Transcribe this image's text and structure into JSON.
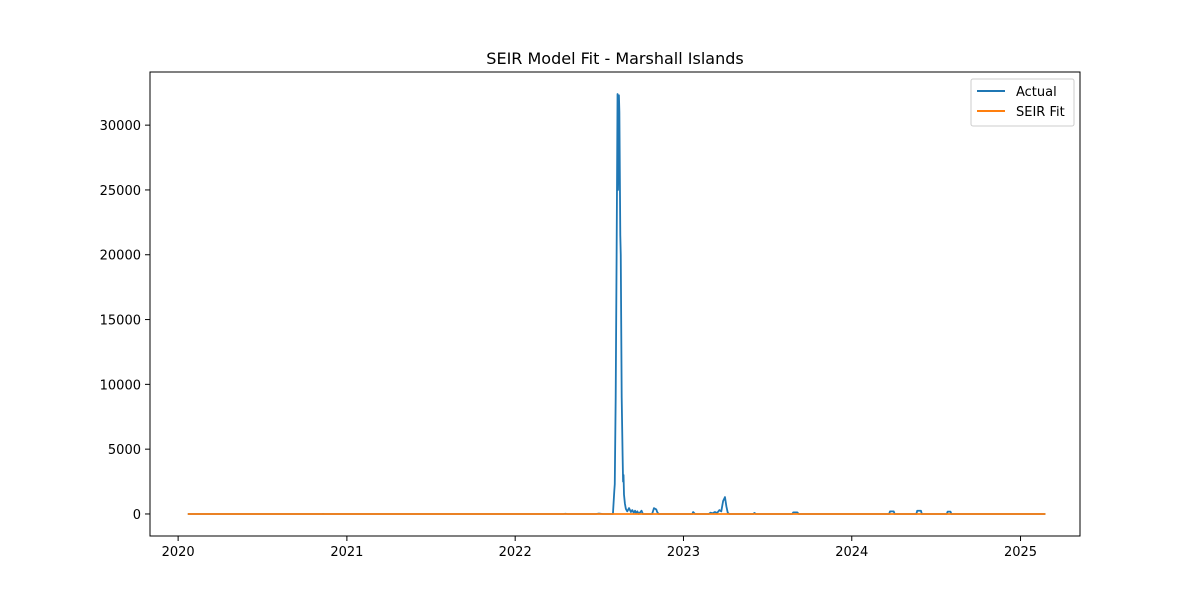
{
  "chart_data": {
    "type": "line",
    "title": "SEIR Model Fit - Marshall Islands",
    "xlabel": "",
    "ylabel": "",
    "x_axis": {
      "type": "date",
      "range": [
        "2019-11-01",
        "2025-05-10"
      ],
      "ticks": [
        {
          "date": "2020-01-01",
          "label": "2020"
        },
        {
          "date": "2021-01-01",
          "label": "2021"
        },
        {
          "date": "2022-01-01",
          "label": "2022"
        },
        {
          "date": "2023-01-01",
          "label": "2023"
        },
        {
          "date": "2024-01-01",
          "label": "2024"
        },
        {
          "date": "2025-01-01",
          "label": "2025"
        }
      ]
    },
    "y_axis": {
      "range": [
        -1700,
        34100
      ],
      "ticks": [
        {
          "value": 0,
          "label": "0"
        },
        {
          "value": 5000,
          "label": "5000"
        },
        {
          "value": 10000,
          "label": "10000"
        },
        {
          "value": 15000,
          "label": "15000"
        },
        {
          "value": 20000,
          "label": "20000"
        },
        {
          "value": 25000,
          "label": "25000"
        },
        {
          "value": 30000,
          "label": "30000"
        }
      ]
    },
    "grid": false,
    "legend": {
      "position": "top-right"
    },
    "series": [
      {
        "name": "Actual",
        "color": "#1f77b4",
        "points": [
          [
            "2020-01-22",
            0
          ],
          [
            "2020-11-08",
            0
          ],
          [
            "2020-11-10",
            5
          ],
          [
            "2020-11-14",
            0
          ],
          [
            "2022-04-15",
            0
          ],
          [
            "2022-04-20",
            20
          ],
          [
            "2022-04-25",
            0
          ],
          [
            "2022-06-25",
            0
          ],
          [
            "2022-07-01",
            30
          ],
          [
            "2022-07-10",
            0
          ],
          [
            "2022-08-01",
            0
          ],
          [
            "2022-08-04",
            1800
          ],
          [
            "2022-08-05",
            2300
          ],
          [
            "2022-08-07",
            9000
          ],
          [
            "2022-08-09",
            20000
          ],
          [
            "2022-08-11",
            32400
          ],
          [
            "2022-08-12",
            25000
          ],
          [
            "2022-08-13",
            27000
          ],
          [
            "2022-08-14",
            32300
          ],
          [
            "2022-08-15",
            31000
          ],
          [
            "2022-08-17",
            21500
          ],
          [
            "2022-08-18",
            20000
          ],
          [
            "2022-08-20",
            9000
          ],
          [
            "2022-08-22",
            4500
          ],
          [
            "2022-08-23",
            2500
          ],
          [
            "2022-08-24",
            3000
          ],
          [
            "2022-08-25",
            1500
          ],
          [
            "2022-08-27",
            800
          ],
          [
            "2022-08-29",
            400
          ],
          [
            "2022-09-01",
            200
          ],
          [
            "2022-09-05",
            450
          ],
          [
            "2022-09-09",
            150
          ],
          [
            "2022-09-12",
            300
          ],
          [
            "2022-09-15",
            100
          ],
          [
            "2022-09-18",
            250
          ],
          [
            "2022-09-20",
            50
          ],
          [
            "2022-09-23",
            200
          ],
          [
            "2022-09-26",
            0
          ],
          [
            "2022-10-02",
            250
          ],
          [
            "2022-10-05",
            0
          ],
          [
            "2022-10-25",
            0
          ],
          [
            "2022-10-29",
            450
          ],
          [
            "2022-11-03",
            350
          ],
          [
            "2022-11-05",
            150
          ],
          [
            "2022-11-08",
            0
          ],
          [
            "2023-01-20",
            0
          ],
          [
            "2023-01-22",
            150
          ],
          [
            "2023-01-26",
            0
          ],
          [
            "2023-02-25",
            0
          ],
          [
            "2023-03-01",
            100
          ],
          [
            "2023-03-05",
            50
          ],
          [
            "2023-03-10",
            150
          ],
          [
            "2023-03-15",
            80
          ],
          [
            "2023-03-20",
            300
          ],
          [
            "2023-03-24",
            200
          ],
          [
            "2023-03-28",
            1000
          ],
          [
            "2023-04-01",
            1300
          ],
          [
            "2023-04-04",
            600
          ],
          [
            "2023-04-07",
            100
          ],
          [
            "2023-04-10",
            0
          ],
          [
            "2023-06-01",
            0
          ],
          [
            "2023-06-04",
            80
          ],
          [
            "2023-06-07",
            0
          ],
          [
            "2023-08-25",
            0
          ],
          [
            "2023-08-27",
            120
          ],
          [
            "2023-09-05",
            120
          ],
          [
            "2023-09-08",
            0
          ],
          [
            "2024-03-22",
            0
          ],
          [
            "2024-03-24",
            200
          ],
          [
            "2024-04-01",
            200
          ],
          [
            "2024-04-03",
            0
          ],
          [
            "2024-05-20",
            0
          ],
          [
            "2024-05-22",
            250
          ],
          [
            "2024-05-30",
            250
          ],
          [
            "2024-06-01",
            0
          ],
          [
            "2024-07-25",
            0
          ],
          [
            "2024-07-27",
            180
          ],
          [
            "2024-08-02",
            180
          ],
          [
            "2024-08-04",
            0
          ],
          [
            "2025-02-24",
            0
          ]
        ]
      },
      {
        "name": "SEIR Fit",
        "color": "#ff7f0e",
        "points": [
          [
            "2020-01-22",
            0
          ],
          [
            "2025-02-24",
            0
          ]
        ]
      }
    ]
  }
}
